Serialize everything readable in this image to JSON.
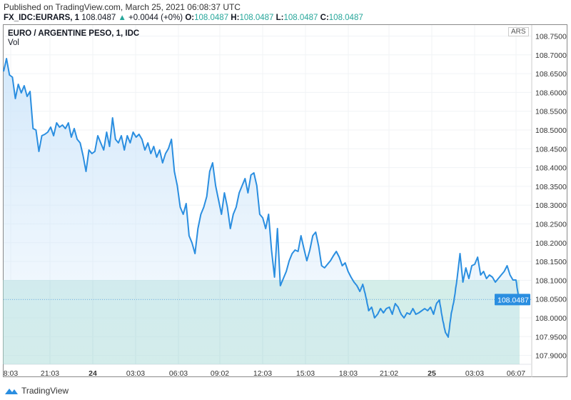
{
  "header": {
    "published": "Published on TradingView.com, March 25, 2021 06:08:37 UTC",
    "symbol": "FX_IDC:EURARS, 1",
    "last": "108.0487",
    "change": "+0.0044 (+0%)",
    "o_label": "O:",
    "o": "108.0487",
    "h_label": "H:",
    "h": "108.0487",
    "l_label": "L:",
    "l": "108.0487",
    "c_label": "C:",
    "c": "108.0487"
  },
  "chart_title": "EURO / ARGENTINE PESO, 1, IDC",
  "vol_label": "Vol",
  "currency": "ARS",
  "brand": "TradingView",
  "colors": {
    "line": "#2a8ee0",
    "fill": "#cfe6fa",
    "volume": "#a8dcd3",
    "price_tag": "#2a8ee0"
  },
  "chart_data": {
    "type": "line",
    "title": "EURO / ARGENTINE PESO, 1, IDC",
    "xlabel": "",
    "ylabel": "ARS",
    "ylim": [
      107.88,
      108.76
    ],
    "y_ticks": [
      "108.7500",
      "108.7000",
      "108.6500",
      "108.6000",
      "108.5500",
      "108.5000",
      "108.4500",
      "108.4000",
      "108.3500",
      "108.3000",
      "108.2500",
      "108.2000",
      "108.1500",
      "108.1000",
      "108.0500",
      "108.0000",
      "107.9500",
      "107.9000"
    ],
    "x_ticks": [
      "8:03",
      "21:03",
      "24",
      "03:03",
      "06:03",
      "09:02",
      "12:03",
      "15:03",
      "18:03",
      "21:02",
      "25",
      "03:03",
      "06:07"
    ],
    "bold_x_ticks": [
      "24",
      "25"
    ],
    "last_price_label": "108.0487",
    "values": [
      108.6559,
      108.6901,
      108.6464,
      108.6407,
      108.5837,
      108.6217,
      108.5989,
      108.6179,
      108.5894,
      108.6027,
      108.5038,
      108.5,
      108.443,
      108.4848,
      108.4886,
      108.4943,
      108.5076,
      108.4848,
      108.519,
      108.5076,
      108.5133,
      108.5038,
      108.519,
      108.481,
      108.5038,
      108.4753,
      108.4658,
      108.4316,
      108.3897,
      108.4468,
      108.4373,
      108.443,
      108.4848,
      108.4658,
      108.4468,
      108.4943,
      108.4563,
      108.5323,
      108.4753,
      108.4658,
      108.4848,
      108.4468,
      108.4848,
      108.4658,
      108.4943,
      108.481,
      108.4886,
      108.4753,
      108.4468,
      108.4658,
      108.4373,
      108.4563,
      108.4278,
      108.4468,
      108.4125,
      108.4373,
      108.4506,
      108.4753,
      108.3897,
      108.3517,
      108.2947,
      108.2757,
      108.3042,
      108.2186,
      108.1996,
      108.1711,
      108.2376,
      108.2757,
      108.2947,
      108.3232,
      108.3897,
      108.4125,
      108.3517,
      108.3137,
      108.2757,
      108.3327,
      108.2947,
      108.2376,
      108.2757,
      108.2947,
      108.3327,
      108.3517,
      108.3707,
      108.3327,
      108.3802,
      108.3859,
      108.3517,
      108.2757,
      108.2662,
      108.2376,
      108.2757,
      108.1806,
      108.1084,
      108.2376,
      108.0856,
      108.1046,
      108.1236,
      108.1521,
      108.1711,
      108.1806,
      108.1768,
      108.2186,
      108.1844,
      108.1521,
      108.1806,
      108.2186,
      108.2281,
      108.1901,
      108.1388,
      108.1331,
      108.1426,
      108.1521,
      108.1654,
      108.1768,
      108.1616,
      108.1388,
      108.1464,
      108.1236,
      108.1084,
      108.0951,
      108.0856,
      108.0703,
      108.0894,
      108.057,
      108.019,
      108.0285,
      108.0,
      108.0095,
      108.0247,
      108.0133,
      108.0247,
      108.0285,
      108.0095,
      108.038,
      108.0285,
      108.0095,
      108.0,
      108.0133,
      108.0095,
      108.0247,
      108.0095,
      108.0133,
      108.019,
      108.0247,
      108.019,
      108.0285,
      108.0095,
      108.038,
      108.0475,
      108.0,
      107.962,
      107.9487,
      108.0095,
      108.0475,
      108.1046,
      108.1711,
      108.0951,
      108.1331,
      108.1046,
      108.1388,
      108.1426,
      108.1616,
      108.1141,
      108.1236,
      108.1046,
      108.1141,
      108.1084,
      108.0951,
      108.1046,
      108.1141,
      108.1236,
      108.1388,
      108.1141,
      108.1008,
      108.1008,
      108.0487
    ]
  }
}
